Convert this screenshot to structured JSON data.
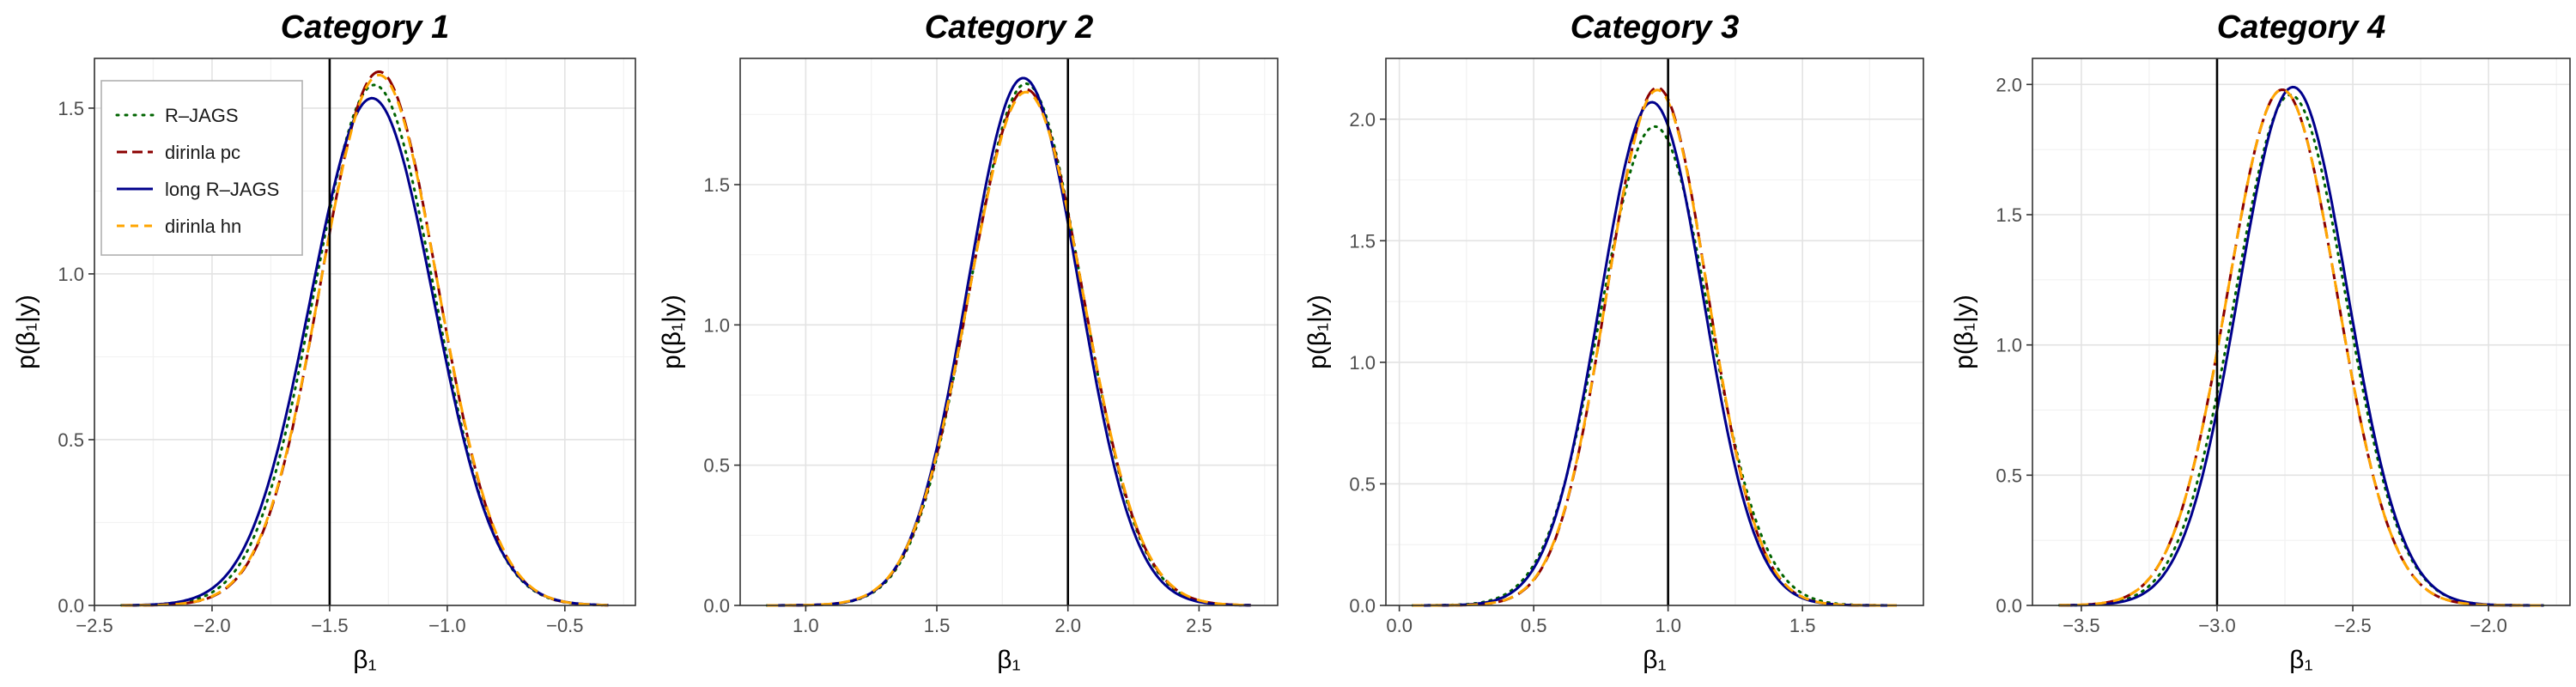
{
  "chart_data": [
    {
      "type": "line",
      "title": "Category 1",
      "xlabel": "β₁",
      "ylabel": "p(β₁|y)",
      "xlim": [
        -2.5,
        -0.2
      ],
      "ylim": [
        0,
        1.65
      ],
      "xticks": [
        -2.5,
        -2.0,
        -1.5,
        -1.0,
        -0.5
      ],
      "xtick_labels": [
        "−2.5",
        "−2.0",
        "−1.5",
        "−1.0",
        "−0.5"
      ],
      "yticks": [
        0.0,
        0.5,
        1.0,
        1.5
      ],
      "ytick_labels": [
        "0.0",
        "0.5",
        "1.0",
        "1.5"
      ],
      "vline": -1.5,
      "grid": true,
      "legend": "top-left",
      "series": [
        {
          "name": "R–JAGS",
          "color": "#006400",
          "dash": "dotted",
          "mean": -1.31,
          "peak": 1.57
        },
        {
          "name": "dirinla pc",
          "color": "#8B0000",
          "dash": "longdash",
          "mean": -1.29,
          "peak": 1.61
        },
        {
          "name": "long R–JAGS",
          "color": "#00008B",
          "dash": "solid",
          "mean": -1.32,
          "peak": 1.53
        },
        {
          "name": "dirinla hn",
          "color": "#FFA500",
          "dash": "dashed",
          "mean": -1.29,
          "peak": 1.6
        }
      ]
    },
    {
      "type": "line",
      "title": "Category 2",
      "xlabel": "β₁",
      "ylabel": "p(β₁|y)",
      "xlim": [
        0.75,
        2.8
      ],
      "ylim": [
        0,
        1.95
      ],
      "xticks": [
        1.0,
        1.5,
        2.0,
        2.5
      ],
      "xtick_labels": [
        "1.0",
        "1.5",
        "2.0",
        "2.5"
      ],
      "yticks": [
        0.0,
        0.5,
        1.0,
        1.5
      ],
      "ytick_labels": [
        "0.0",
        "0.5",
        "1.0",
        "1.5"
      ],
      "vline": 2.0,
      "grid": true,
      "series": [
        {
          "name": "R–JAGS",
          "color": "#006400",
          "dash": "dotted",
          "mean": 1.84,
          "peak": 1.86
        },
        {
          "name": "dirinla pc",
          "color": "#8B0000",
          "dash": "longdash",
          "mean": 1.84,
          "peak": 1.84
        },
        {
          "name": "long R–JAGS",
          "color": "#00008B",
          "dash": "solid",
          "mean": 1.83,
          "peak": 1.88
        },
        {
          "name": "dirinla hn",
          "color": "#FFA500",
          "dash": "dashed",
          "mean": 1.84,
          "peak": 1.83
        }
      ]
    },
    {
      "type": "line",
      "title": "Category 3",
      "xlabel": "β₁",
      "ylabel": "p(β₁|y)",
      "xlim": [
        -0.05,
        1.95
      ],
      "ylim": [
        0,
        2.25
      ],
      "xticks": [
        0.0,
        0.5,
        1.0,
        1.5
      ],
      "xtick_labels": [
        "0.0",
        "0.5",
        "1.0",
        "1.5"
      ],
      "yticks": [
        0.0,
        0.5,
        1.0,
        1.5,
        2.0
      ],
      "ytick_labels": [
        "0.0",
        "0.5",
        "1.0",
        "1.5",
        "2.0"
      ],
      "vline": 1.0,
      "grid": true,
      "series": [
        {
          "name": "R–JAGS",
          "color": "#006400",
          "dash": "dotted",
          "mean": 0.95,
          "peak": 1.97
        },
        {
          "name": "dirinla pc",
          "color": "#8B0000",
          "dash": "longdash",
          "mean": 0.96,
          "peak": 2.13
        },
        {
          "name": "long R–JAGS",
          "color": "#00008B",
          "dash": "solid",
          "mean": 0.94,
          "peak": 2.07
        },
        {
          "name": "dirinla hn",
          "color": "#FFA500",
          "dash": "dashed",
          "mean": 0.96,
          "peak": 2.12
        }
      ]
    },
    {
      "type": "line",
      "title": "Category 4",
      "xlabel": "β₁",
      "ylabel": "p(β₁|y)",
      "xlim": [
        -3.68,
        -1.7
      ],
      "ylim": [
        0,
        2.1
      ],
      "xticks": [
        -3.5,
        -3.0,
        -2.5,
        -2.0
      ],
      "xtick_labels": [
        "−3.5",
        "−3.0",
        "−2.5",
        "−2.0"
      ],
      "yticks": [
        0.0,
        0.5,
        1.0,
        1.5,
        2.0
      ],
      "ytick_labels": [
        "0.0",
        "0.5",
        "1.0",
        "1.5",
        "2.0"
      ],
      "vline": -3.0,
      "grid": true,
      "series": [
        {
          "name": "R–JAGS",
          "color": "#006400",
          "dash": "dotted",
          "mean": -2.73,
          "peak": 1.96
        },
        {
          "name": "dirinla pc",
          "color": "#8B0000",
          "dash": "longdash",
          "mean": -2.76,
          "peak": 1.98
        },
        {
          "name": "long R–JAGS",
          "color": "#00008B",
          "dash": "solid",
          "mean": -2.72,
          "peak": 1.99
        },
        {
          "name": "dirinla hn",
          "color": "#FFA500",
          "dash": "dashed",
          "mean": -2.76,
          "peak": 1.98
        }
      ]
    }
  ]
}
